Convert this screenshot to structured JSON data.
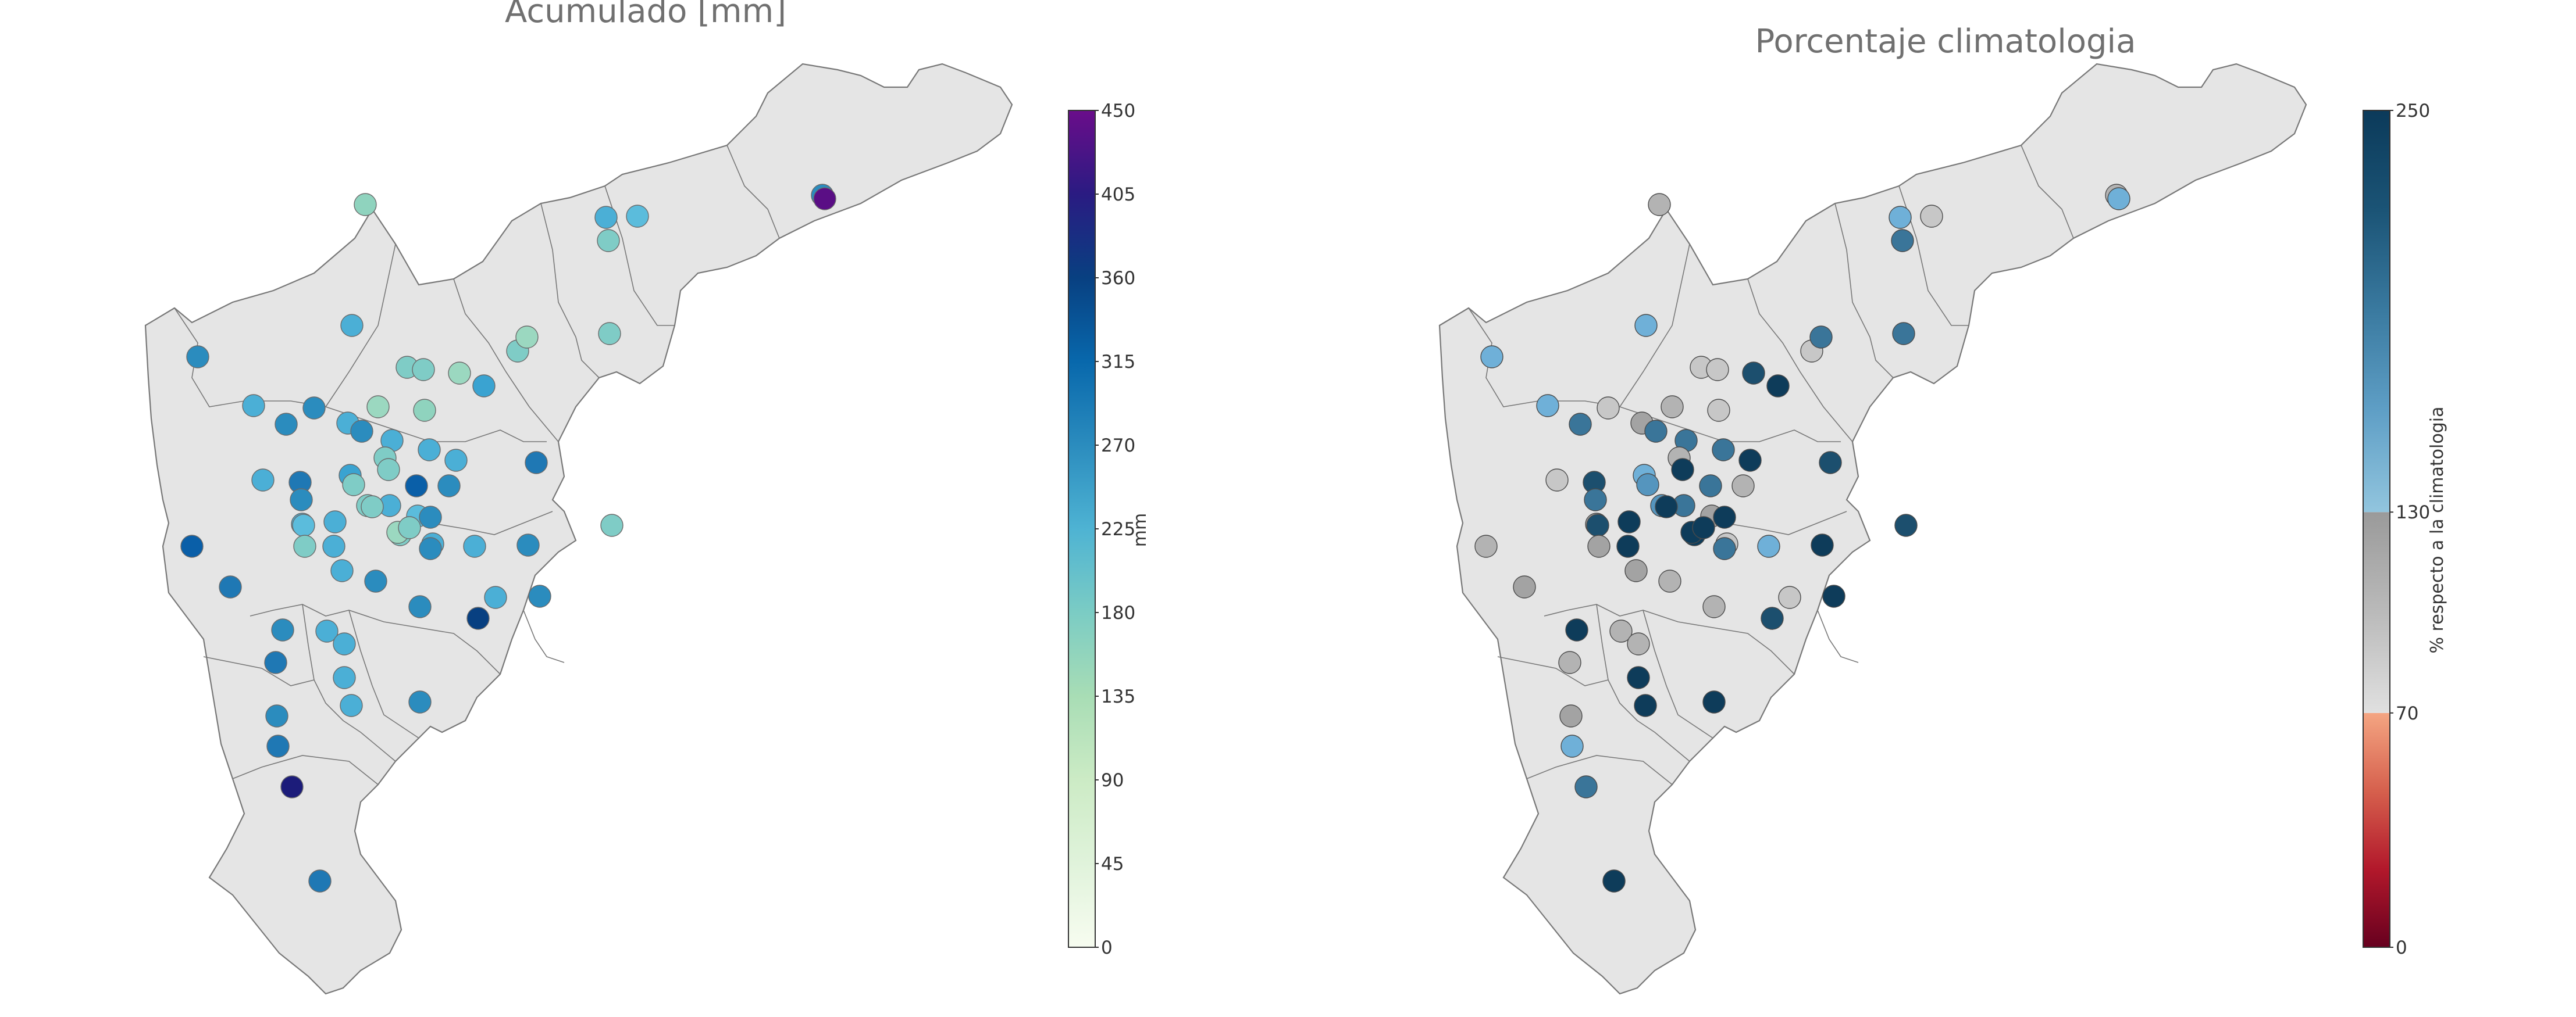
{
  "panels": [
    {
      "title": "Acumulado [mm]",
      "colorbar": {
        "label": "mm",
        "ticks": [
          "0",
          "45",
          "90",
          "135",
          "180",
          "225",
          "270",
          "315",
          "360",
          "405",
          "450"
        ],
        "min": 0,
        "max": 450,
        "gradient": [
          "#f7fcf0",
          "#e0f3db",
          "#ccebc5",
          "#a8ddb5",
          "#7bccc4",
          "#4eb3d3",
          "#2b8cbe",
          "#0868ac",
          "#084081",
          "#2a1b82",
          "#6a0d8a"
        ]
      },
      "marker_colors": [
        "#8fd3be",
        "#4bafd6",
        "#2b8cbe",
        "#1f78b4",
        "#0a5fa8",
        "#084081",
        "#1c1c7a",
        "#5a0e85",
        "#7fccc6",
        "#9bd8c0",
        "#3aa3d1",
        "#5bbcdc"
      ]
    },
    {
      "title": "Porcentaje climatologia",
      "colorbar": {
        "label": "% respecto a la climatologia",
        "ticks": [
          "0",
          "70",
          "130",
          "250"
        ],
        "min": 0,
        "max": 250,
        "segments": [
          {
            "from": 0,
            "to": 70,
            "colors": [
              "#67001f",
              "#b2182b",
              "#d6604d",
              "#f4a582"
            ]
          },
          {
            "from": 70,
            "to": 130,
            "colors": [
              "#e0e0e0",
              "#bababa",
              "#9a9a9a"
            ]
          },
          {
            "from": 130,
            "to": 250,
            "colors": [
              "#92c5de",
              "#5f9fc6",
              "#3a7aa0",
              "#1b5476",
              "#0b3a5a"
            ]
          }
        ]
      },
      "marker_colors": [
        "#b3b3b3",
        "#c7c7c7",
        "#a3a3a3",
        "#6fb0d8",
        "#5595be",
        "#3a7599",
        "#1c4f6e",
        "#0e3c5a"
      ]
    }
  ],
  "colors": {
    "map_fill": "#e5e5e5",
    "map_border": "#777777",
    "title": "#707070",
    "tick_text": "#333333",
    "marker_edge": "#555555"
  }
}
